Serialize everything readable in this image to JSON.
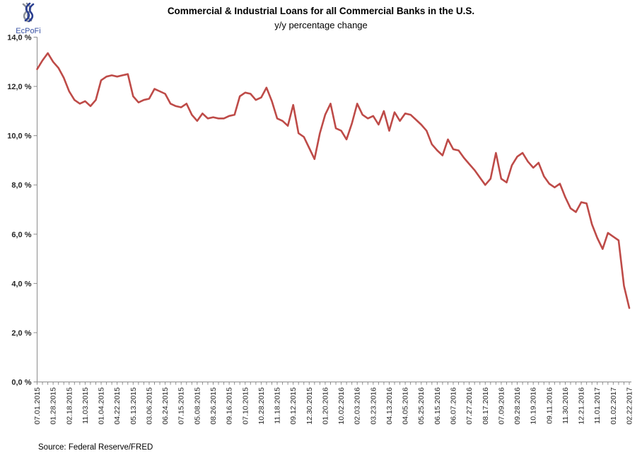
{
  "logo": {
    "text": "EcPoFi",
    "icon": "knot-icon",
    "blue": "#2B3F90",
    "gray": "#8E9299",
    "text_color": "#3A53A4"
  },
  "header": {
    "title": "Commercial & Industrial Loans for all Commercial Banks in the U.S.",
    "subtitle": "y/y percentage change"
  },
  "footer": {
    "source": "Source: Federal Reserve/FRED"
  },
  "chart_data": {
    "type": "line",
    "title": "Commercial & Industrial Loans for all Commercial Banks in the U.S.",
    "subtitle": "y/y percentage change",
    "grid": "off",
    "legend": "none",
    "ylim": [
      0,
      14
    ],
    "y_tick_step": 2,
    "y_tick_labels": [
      "0,0 %",
      "2,0 %",
      "4,0 %",
      "6,0 %",
      "8,0 %",
      "10,0 %",
      "12,0 %",
      "14,0 %"
    ],
    "x_label_every_n_points": 3,
    "x_tick_labels": [
      "07.01.2015",
      "01.28.2015",
      "02.18.2015",
      "11.03.2015",
      "01.04.2015",
      "04.22.2015",
      "05.13.2015",
      "03.06.2015",
      "06.24.2015",
      "07.15.2015",
      "05.08.2015",
      "08.26.2015",
      "09.16.2015",
      "07.10.2015",
      "10.28.2015",
      "11.18.2015",
      "09.12.2015",
      "12.30.2015",
      "01.20.2016",
      "10.02.2016",
      "02.03.2016",
      "03.23.2016",
      "04.13.2016",
      "04.05.2016",
      "05.25.2016",
      "06.15.2016",
      "06.07.2016",
      "07.27.2016",
      "08.17.2016",
      "07.09.2016",
      "09.28.2016",
      "10.19.2016",
      "09.11.2016",
      "11.30.2016",
      "12.21.2016",
      "11.01.2017",
      "01.02.2017",
      "02.22.2017"
    ],
    "values": [
      12.7,
      13.05,
      13.35,
      13.0,
      12.75,
      12.35,
      11.8,
      11.45,
      11.3,
      11.4,
      11.2,
      11.45,
      12.25,
      12.4,
      12.45,
      12.4,
      12.45,
      12.5,
      11.6,
      11.35,
      11.45,
      11.5,
      11.9,
      11.8,
      11.7,
      11.3,
      11.2,
      11.15,
      11.3,
      10.85,
      10.6,
      10.9,
      10.7,
      10.75,
      10.7,
      10.7,
      10.8,
      10.85,
      11.6,
      11.75,
      11.7,
      11.45,
      11.55,
      11.95,
      11.4,
      10.7,
      10.6,
      10.4,
      11.25,
      10.1,
      9.95,
      9.5,
      9.05,
      10.1,
      10.85,
      11.3,
      10.3,
      10.2,
      9.85,
      10.5,
      11.3,
      10.85,
      10.7,
      10.8,
      10.45,
      11.0,
      10.2,
      10.95,
      10.6,
      10.9,
      10.85,
      10.65,
      10.45,
      10.2,
      9.65,
      9.4,
      9.2,
      9.85,
      9.45,
      9.4,
      9.1,
      8.85,
      8.6,
      8.3,
      8.0,
      8.25,
      9.3,
      8.25,
      8.1,
      8.8,
      9.15,
      9.3,
      8.95,
      8.7,
      8.9,
      8.35,
      8.05,
      7.9,
      8.05,
      7.5,
      7.05,
      6.9,
      7.3,
      7.25,
      6.4,
      5.85,
      5.4,
      6.05,
      5.9,
      5.75,
      3.9,
      3.0
    ],
    "line_color": "#BE4B48",
    "line_width": 2.6,
    "axis_color": "#8C8C8C",
    "tick_label_color": "#262626"
  }
}
